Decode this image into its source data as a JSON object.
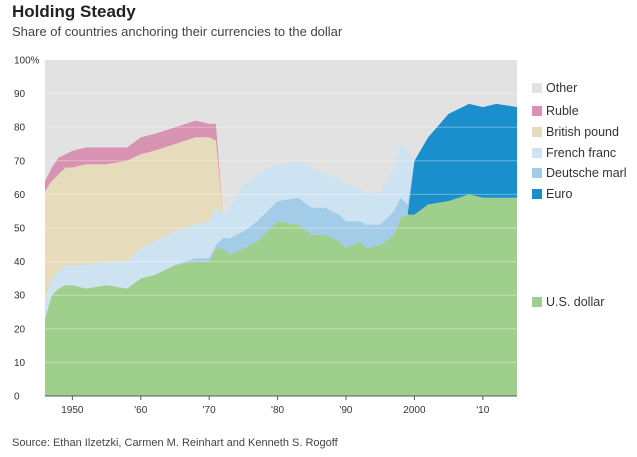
{
  "title": "Holding Steady",
  "subtitle": "Share of countries anchoring their currencies to the dollar",
  "source": "Source: Ethan Ilzetzki, Carmen M. Reinhart and Kenneth S. Rogoff",
  "colors": {
    "background": "#e2e2e2",
    "us_dollar": "#9fcf8c",
    "euro": "#1a8fcb",
    "deutsche_mark": "#a2cce8",
    "french_franc": "#cde3f1",
    "british_pound": "#e6dcbc",
    "ruble": "#d892b2",
    "other": "#e2e2e2"
  },
  "legend": [
    {
      "key": "other",
      "label": "Other"
    },
    {
      "key": "ruble",
      "label": "Ruble"
    },
    {
      "key": "british_pound",
      "label": "British pound"
    },
    {
      "key": "french_franc",
      "label": "French franc"
    },
    {
      "key": "deutsche_mark",
      "label": "Deutsche marl"
    },
    {
      "key": "euro",
      "label": "Euro"
    },
    {
      "key": "us_dollar",
      "label": "U.S. dollar"
    }
  ],
  "chart_data": {
    "type": "area",
    "stacked": true,
    "x": [
      1946,
      1947,
      1948,
      1949,
      1950,
      1952,
      1955,
      1958,
      1960,
      1962,
      1965,
      1968,
      1970,
      1971,
      1972,
      1973,
      1975,
      1977,
      1980,
      1983,
      1985,
      1987,
      1989,
      1990,
      1991,
      1992,
      1993,
      1995,
      1997,
      1998,
      1999,
      2000,
      2002,
      2005,
      2008,
      2010,
      2012,
      2015
    ],
    "series": [
      {
        "name": "U.S. dollar",
        "key": "us_dollar",
        "values": [
          23,
          30,
          32,
          33,
          33,
          32,
          33,
          32,
          35,
          36,
          39,
          40,
          40,
          44,
          44,
          42,
          44,
          46,
          52,
          51,
          48,
          48,
          46,
          44,
          45,
          46,
          44,
          45,
          48,
          53,
          54,
          54,
          57,
          58,
          60,
          59,
          59,
          59
        ]
      },
      {
        "name": "Euro",
        "key": "euro",
        "values": [
          0,
          0,
          0,
          0,
          0,
          0,
          0,
          0,
          0,
          0,
          0,
          0,
          0,
          0,
          0,
          0,
          0,
          0,
          0,
          0,
          0,
          0,
          0,
          0,
          0,
          0,
          0,
          0,
          0,
          0,
          0,
          16,
          20,
          26,
          27,
          27,
          28,
          27
        ]
      },
      {
        "name": "Deutsche marl",
        "key": "deutsche_mark",
        "values": [
          0,
          0,
          0,
          0,
          0,
          0,
          0,
          0,
          0,
          0,
          0,
          1,
          1,
          1,
          3,
          5,
          5,
          6,
          6,
          8,
          8,
          8,
          8,
          8,
          7,
          6,
          7,
          6,
          7,
          6,
          3,
          0,
          0,
          0,
          0,
          0,
          0,
          0
        ]
      },
      {
        "name": "French franc",
        "key": "french_franc",
        "values": [
          5,
          5,
          5,
          6,
          6,
          7,
          7,
          8,
          9,
          10,
          10,
          10,
          11,
          11,
          7,
          9,
          14,
          14,
          11,
          11,
          12,
          10,
          11,
          11,
          10,
          10,
          9,
          10,
          13,
          16,
          16,
          0,
          0,
          0,
          0,
          0,
          0,
          0
        ]
      },
      {
        "name": "British pound",
        "key": "british_pound",
        "values": [
          33,
          29,
          29,
          29,
          29,
          30,
          29,
          30,
          28,
          27,
          26,
          26,
          25,
          20,
          0,
          0,
          0,
          0,
          0,
          0,
          0,
          0,
          0,
          0,
          0,
          0,
          0,
          0,
          0,
          0,
          0,
          0,
          0,
          0,
          0,
          0,
          0,
          0
        ]
      },
      {
        "name": "Ruble",
        "key": "ruble",
        "values": [
          3,
          4,
          5,
          4,
          5,
          5,
          5,
          4,
          5,
          5,
          5,
          5,
          4,
          5,
          0,
          0,
          0,
          0,
          0,
          0,
          0,
          0,
          0,
          0,
          0,
          0,
          0,
          0,
          0,
          0,
          0,
          0,
          0,
          0,
          0,
          0,
          0,
          0
        ]
      },
      {
        "name": "Other",
        "key": "other",
        "values": [
          36,
          32,
          29,
          28,
          27,
          26,
          26,
          26,
          23,
          22,
          20,
          18,
          19,
          19,
          46,
          44,
          37,
          34,
          31,
          30,
          32,
          34,
          35,
          37,
          38,
          38,
          40,
          39,
          32,
          25,
          27,
          30,
          23,
          16,
          13,
          14,
          13,
          14
        ]
      }
    ],
    "xlim": [
      1946,
      2015
    ],
    "ylim": [
      0,
      100
    ],
    "yticks": [
      "0",
      "10",
      "20",
      "30",
      "40",
      "50",
      "60",
      "70",
      "80",
      "90",
      "100%"
    ],
    "xticks": [
      {
        "value": 1950,
        "label": "1950"
      },
      {
        "value": 1960,
        "label": "'60"
      },
      {
        "value": 1970,
        "label": "'70"
      },
      {
        "value": 1980,
        "label": "'80"
      },
      {
        "value": 1990,
        "label": "'90"
      },
      {
        "value": 2000,
        "label": "2000"
      },
      {
        "value": 2010,
        "label": "'10"
      }
    ],
    "grid": true,
    "legend_position": "right"
  }
}
